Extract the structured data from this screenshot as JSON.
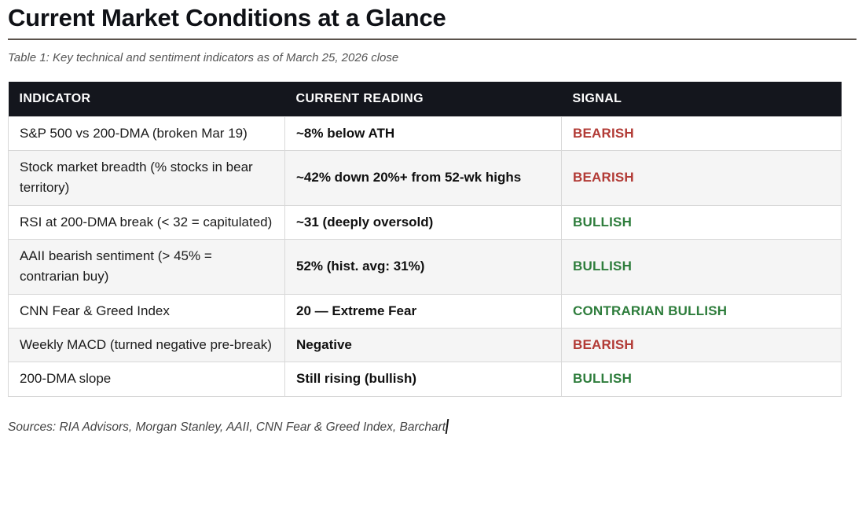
{
  "page": {
    "title": "Current Market Conditions at a Glance",
    "caption": "Table 1: Key technical and sentiment indicators as of March 25, 2026 close",
    "sources": "Sources: RIA Advisors, Morgan Stanley, AAII, CNN Fear & Greed Index, Barchart"
  },
  "table": {
    "headers": [
      "INDICATOR",
      "CURRENT READING",
      "SIGNAL"
    ],
    "rows": [
      {
        "indicator": "S&P 500 vs 200-DMA (broken Mar 19)",
        "reading": "~8% below ATH",
        "signal": "BEARISH",
        "signal_type": "bearish"
      },
      {
        "indicator": "Stock market breadth (% stocks in bear territory)",
        "reading": "~42% down 20%+ from 52-wk highs",
        "signal": "BEARISH",
        "signal_type": "bearish"
      },
      {
        "indicator": "RSI at 200-DMA break (< 32 = capitulated)",
        "reading": "~31 (deeply oversold)",
        "signal": "BULLISH",
        "signal_type": "bullish"
      },
      {
        "indicator": "AAII bearish sentiment (> 45% = contrarian buy)",
        "reading": "52% (hist. avg: 31%)",
        "signal": "BULLISH",
        "signal_type": "bullish"
      },
      {
        "indicator": "CNN Fear & Greed Index",
        "reading": "20 — Extreme Fear",
        "signal": "CONTRARIAN BULLISH",
        "signal_type": "bullish"
      },
      {
        "indicator": "Weekly MACD (turned negative pre-break)",
        "reading": "Negative",
        "signal": "BEARISH",
        "signal_type": "bearish"
      },
      {
        "indicator": "200-DMA slope",
        "reading": "Still rising (bullish)",
        "signal": "BULLISH",
        "signal_type": "bullish"
      }
    ]
  },
  "colors": {
    "bearish": "#b23b36",
    "bullish": "#2e7d3c",
    "header_bg": "#14161d",
    "row_alt": "#f5f5f5",
    "divider": "#5b534c"
  }
}
